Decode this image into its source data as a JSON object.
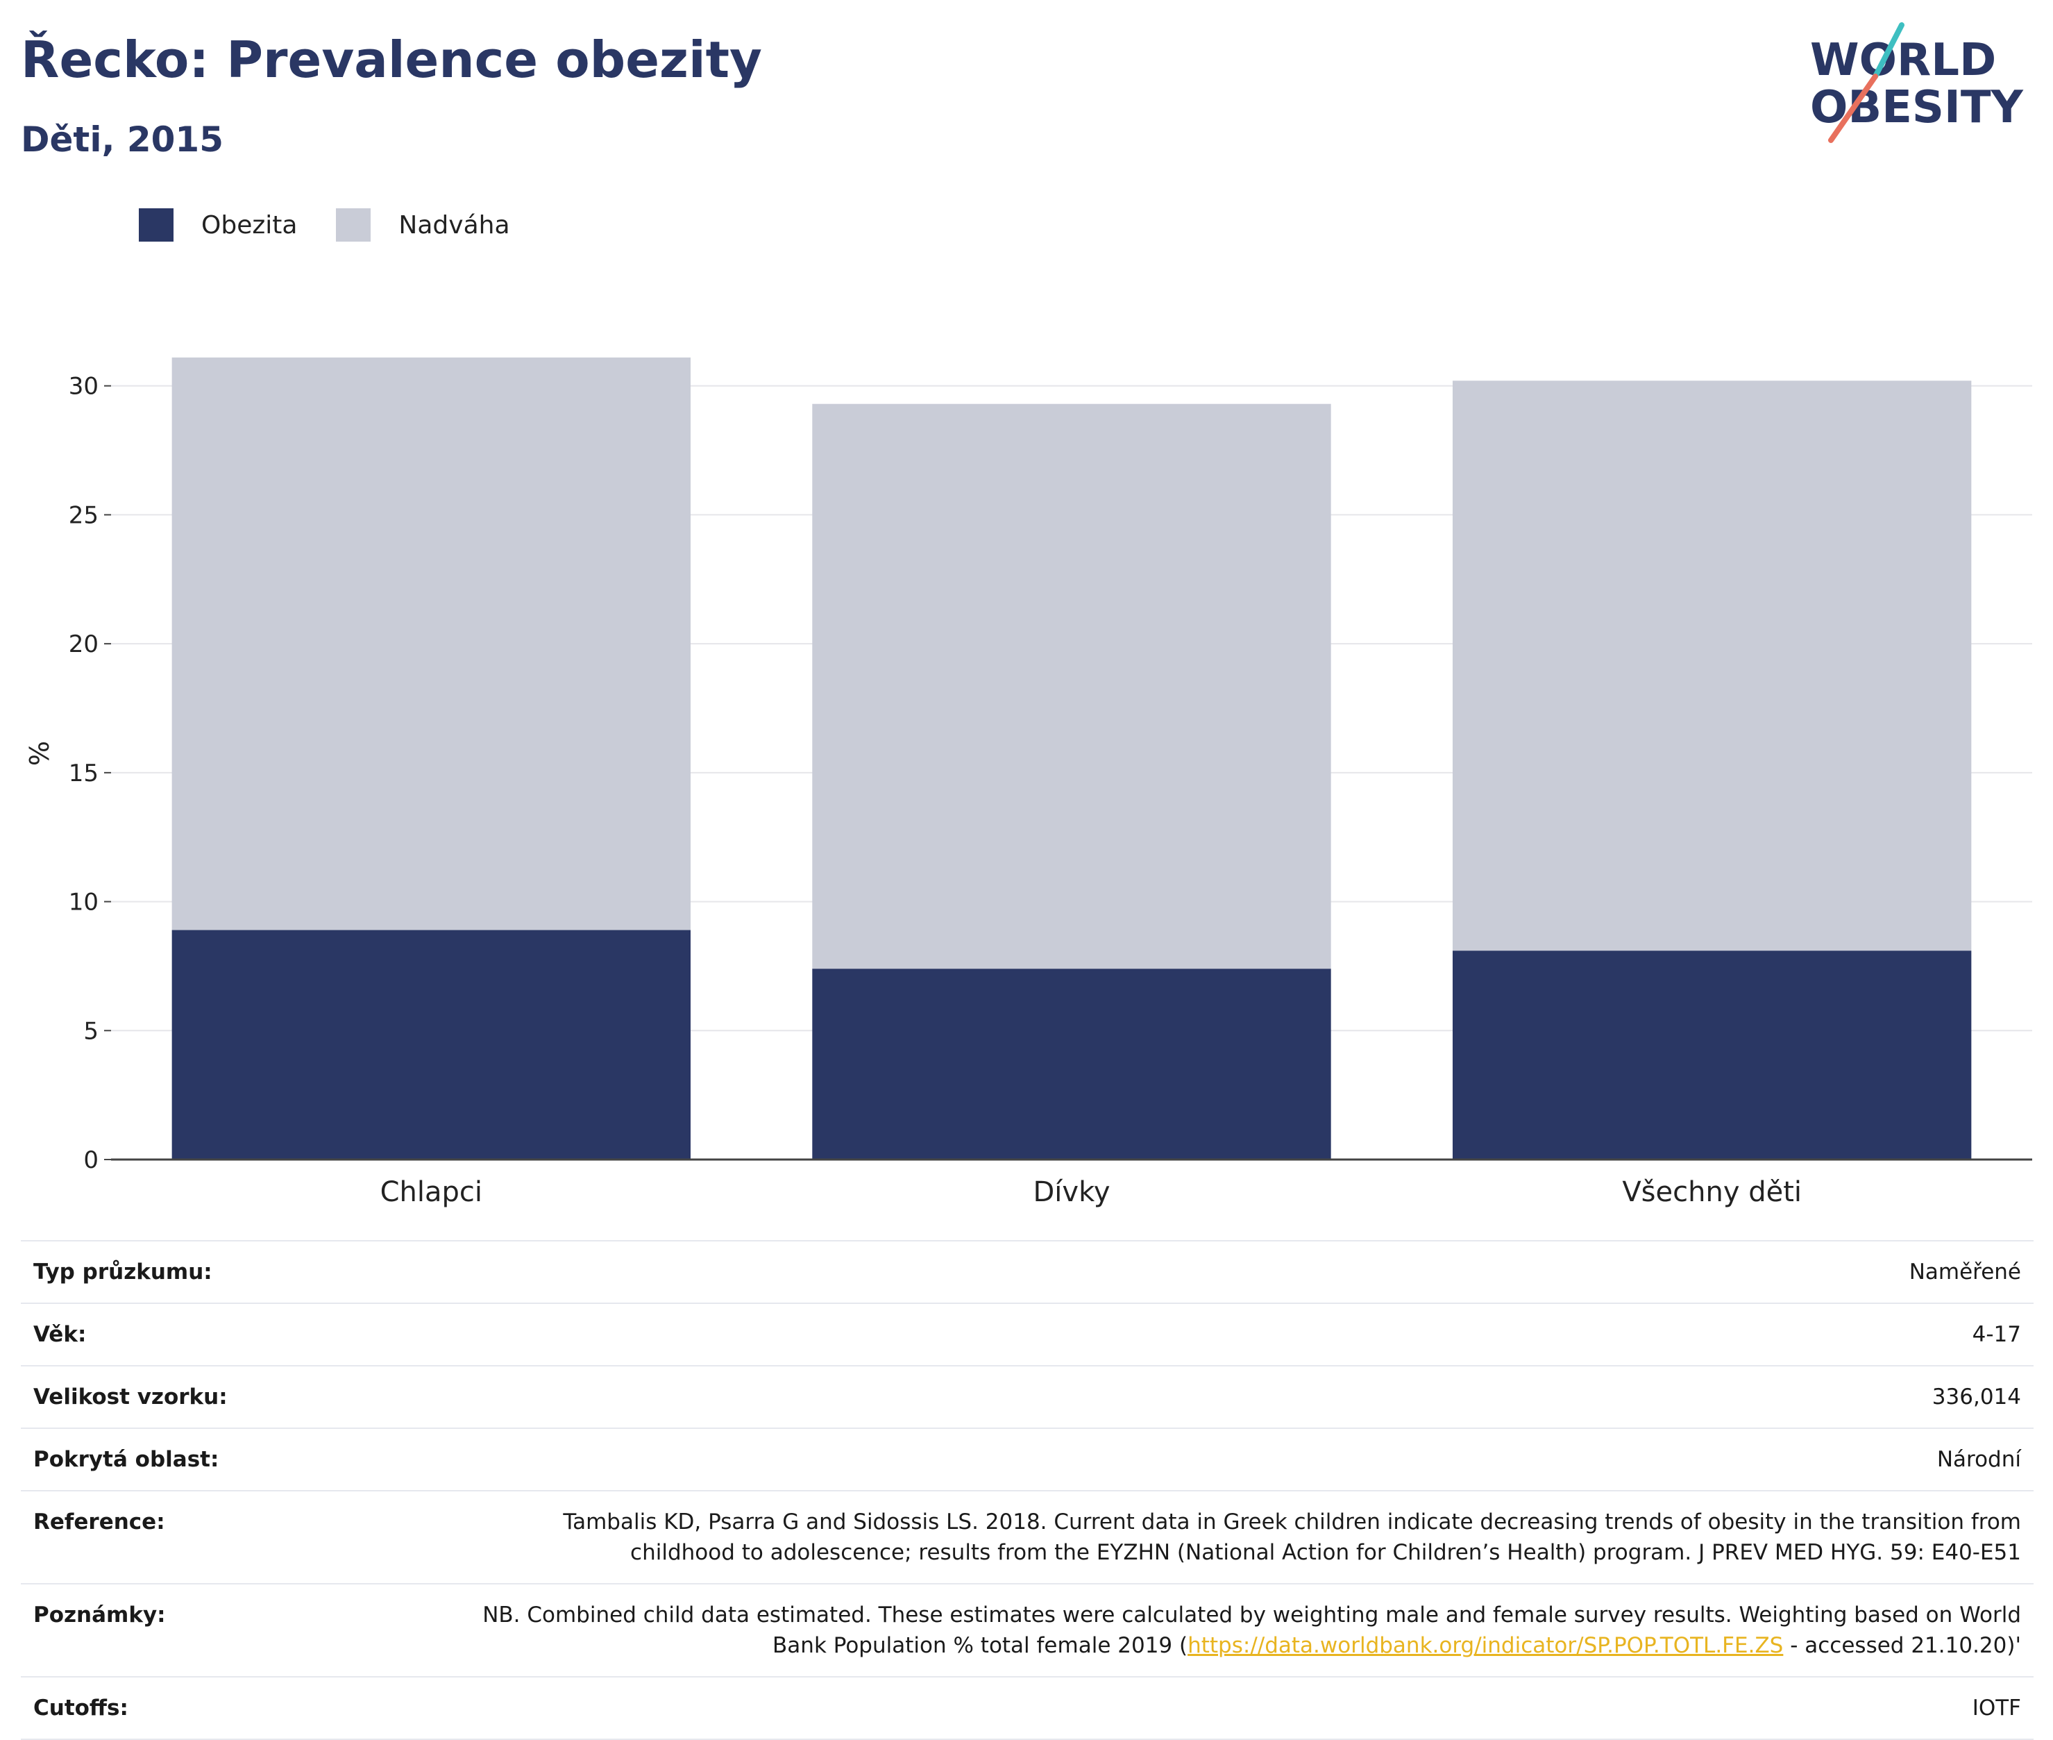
{
  "header": {
    "title": "Řecko: Prevalence obezity",
    "subtitle": "Děti, 2015"
  },
  "logo": {
    "line1": "WORLD",
    "line2": "OBESITY"
  },
  "colors": {
    "obesity": "#2a3764",
    "overweight": "#c9ccd7",
    "title": "#2a3764",
    "link": "#e8b420"
  },
  "chart_data": {
    "type": "bar",
    "stacked": true,
    "categories": [
      "Chlapci",
      "Dívky",
      "Všechny děti"
    ],
    "series": [
      {
        "name": "Obezita",
        "values": [
          8.9,
          7.4,
          8.1
        ]
      },
      {
        "name": "Nadváha",
        "values": [
          22.2,
          21.9,
          22.1
        ]
      }
    ],
    "ylabel": "%",
    "ylim": [
      0,
      31.5
    ],
    "yticks": [
      0,
      5,
      10,
      15,
      20,
      25,
      30
    ],
    "grid": true,
    "legend_position": "top-left"
  },
  "info": {
    "survey_type_label": "Typ průzkumu:",
    "survey_type": "Naměřené",
    "age_label": "Věk:",
    "age": "4-17",
    "sample_label": "Velikost vzorku:",
    "sample": "336,014",
    "area_label": "Pokrytá oblast:",
    "area": "Národní",
    "reference_label": "Reference:",
    "reference": "Tambalis KD, Psarra G and Sidossis LS. 2018. Current data in Greek children indicate decreasing trends of obesity in the transition from childhood to adolescence; results from the EYZHN (National Action for Children’s Health) program. J PREV MED HYG. 59: E40-E51",
    "notes_label": "Poznámky:",
    "notes_before": "NB. Combined child data estimated. These estimates were calculated by weighting male and female survey results. Weighting based on World Bank Population % total female 2019 (",
    "notes_link": "https://data.worldbank.org/indicator/SP.POP.TOTL.FE.ZS",
    "notes_after": " - accessed 21.10.20)'",
    "cutoffs_label": "Cutoffs:",
    "cutoffs": "IOTF"
  }
}
